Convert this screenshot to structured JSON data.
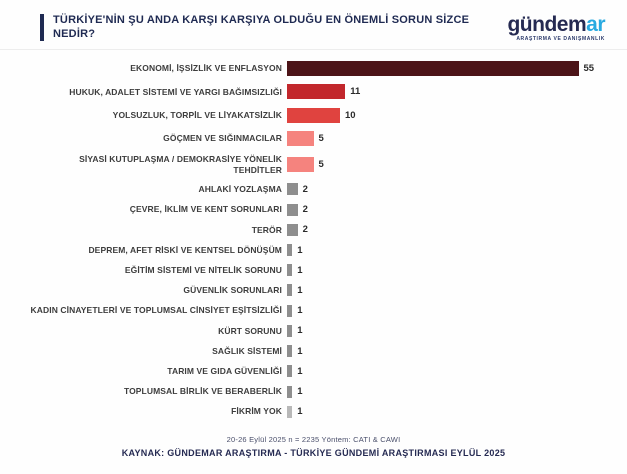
{
  "header": {
    "title": "TÜRKİYE'NİN ŞU ANDA KARŞI KARŞIYA OLDUĞU EN ÖNEMLİ SORUN SİZCE NEDİR?",
    "logo": {
      "part1": "gündem",
      "part2": "ar",
      "tagline": "ARAŞTIRMA VE DANIŞMANLIK",
      "part1_color": "#252a52",
      "part2_color": "#29aae1"
    }
  },
  "chart_data": {
    "type": "bar",
    "orientation": "horizontal",
    "title": "TÜRKİYE'NİN ŞU ANDA KARŞI KARŞIYA OLDUĞU EN ÖNEMLİ SORUN SİZCE NEDİR?",
    "xlim": [
      0,
      57
    ],
    "grid": false,
    "value_labels_shown": true,
    "bars": [
      {
        "label": "EKONOMİ, İŞSİZLİK VE ENFLASYON",
        "value": 55,
        "color": "#4c1418"
      },
      {
        "label": "HUKUK, ADALET SİSTEMİ VE YARGI BAĞIMSIZLIĞI",
        "value": 11,
        "color": "#c2272c"
      },
      {
        "label": "YOLSUZLUK, TORPİL VE LİYAKATSİZLİK",
        "value": 10,
        "color": "#e0433f"
      },
      {
        "label": "GÖÇMEN VE SIĞINMACILAR",
        "value": 5,
        "color": "#f5837e"
      },
      {
        "label": "SİYASİ KUTUPLAŞMA / DEMOKRASİYE YÖNELİK TEHDİTLER",
        "value": 5,
        "color": "#f5837e"
      },
      {
        "label": "AHLAKİ YOZLAŞMA",
        "value": 2,
        "color": "#8e8e8e"
      },
      {
        "label": "ÇEVRE, İKLİM VE KENT SORUNLARI",
        "value": 2,
        "color": "#8e8e8e"
      },
      {
        "label": "TERÖR",
        "value": 2,
        "color": "#8e8e8e"
      },
      {
        "label": "DEPREM, AFET RİSKİ VE KENTSEL DÖNÜŞÜM",
        "value": 1,
        "color": "#8e8e8e"
      },
      {
        "label": "EĞİTİM SİSTEMİ VE NİTELİK SORUNU",
        "value": 1,
        "color": "#8e8e8e"
      },
      {
        "label": "GÜVENLİK SORUNLARI",
        "value": 1,
        "color": "#8e8e8e"
      },
      {
        "label": "KADIN CİNAYETLERİ VE TOPLUMSAL CİNSİYET EŞİTSİZLİĞİ",
        "value": 1,
        "color": "#8e8e8e"
      },
      {
        "label": "KÜRT SORUNU",
        "value": 1,
        "color": "#8e8e8e"
      },
      {
        "label": "SAĞLIK SİSTEMİ",
        "value": 1,
        "color": "#8e8e8e"
      },
      {
        "label": "TARIM VE GIDA GÜVENLİĞİ",
        "value": 1,
        "color": "#8e8e8e"
      },
      {
        "label": "TOPLUMSAL BİRLİK VE BERABERLİK",
        "value": 1,
        "color": "#8e8e8e"
      },
      {
        "label": "FİKRİM YOK",
        "value": 1,
        "color": "#b8b8b8"
      }
    ]
  },
  "footer": {
    "line1": "20-26 Eylül 2025 n = 2235 Yöntem: CATI & CAWI",
    "line2": "KAYNAK: GÜNDEMAR ARAŞTIRMA - TÜRKİYE GÜNDEMİ ARAŞTIRMASI EYLÜL 2025"
  },
  "colors": {
    "navy": "#1f2a52",
    "label_text": "#3d3d3d",
    "value_text": "#2a2a2a",
    "divider": "#ededed"
  }
}
